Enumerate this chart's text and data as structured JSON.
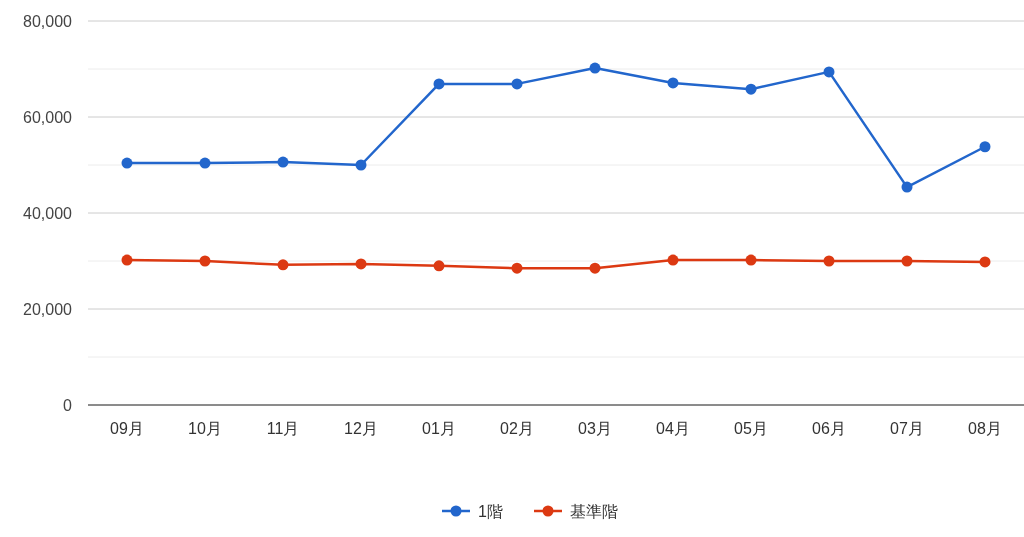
{
  "chart_data": {
    "type": "line",
    "categories": [
      "09月",
      "10月",
      "11月",
      "12月",
      "01月",
      "02月",
      "03月",
      "04月",
      "05月",
      "06月",
      "07月",
      "08月"
    ],
    "series": [
      {
        "name": "1階",
        "color": "#2266cc",
        "values": [
          50400,
          50400,
          50600,
          50000,
          66900,
          66900,
          70200,
          67100,
          65800,
          69400,
          45400,
          53800
        ]
      },
      {
        "name": "基準階",
        "color": "#dc3912",
        "values": [
          30200,
          30000,
          29200,
          29400,
          29000,
          28500,
          28500,
          30200,
          30200,
          30000,
          30000,
          29800
        ]
      }
    ],
    "ylim": [
      0,
      80000
    ],
    "yticks": [
      0,
      {
        "value": 10000,
        "label": null
      },
      {
        "value": 20000,
        "label": "20,000"
      },
      {
        "value": 30000,
        "label": null
      },
      {
        "value": 40000,
        "label": "40,000"
      },
      {
        "value": 50000,
        "label": null
      },
      {
        "value": 60000,
        "label": "60,000"
      },
      {
        "value": 70000,
        "label": null
      },
      {
        "value": 80000,
        "label": "80,000"
      }
    ],
    "grid": "y",
    "legend": "bottom",
    "marker": "circle",
    "line_style": "solid"
  }
}
